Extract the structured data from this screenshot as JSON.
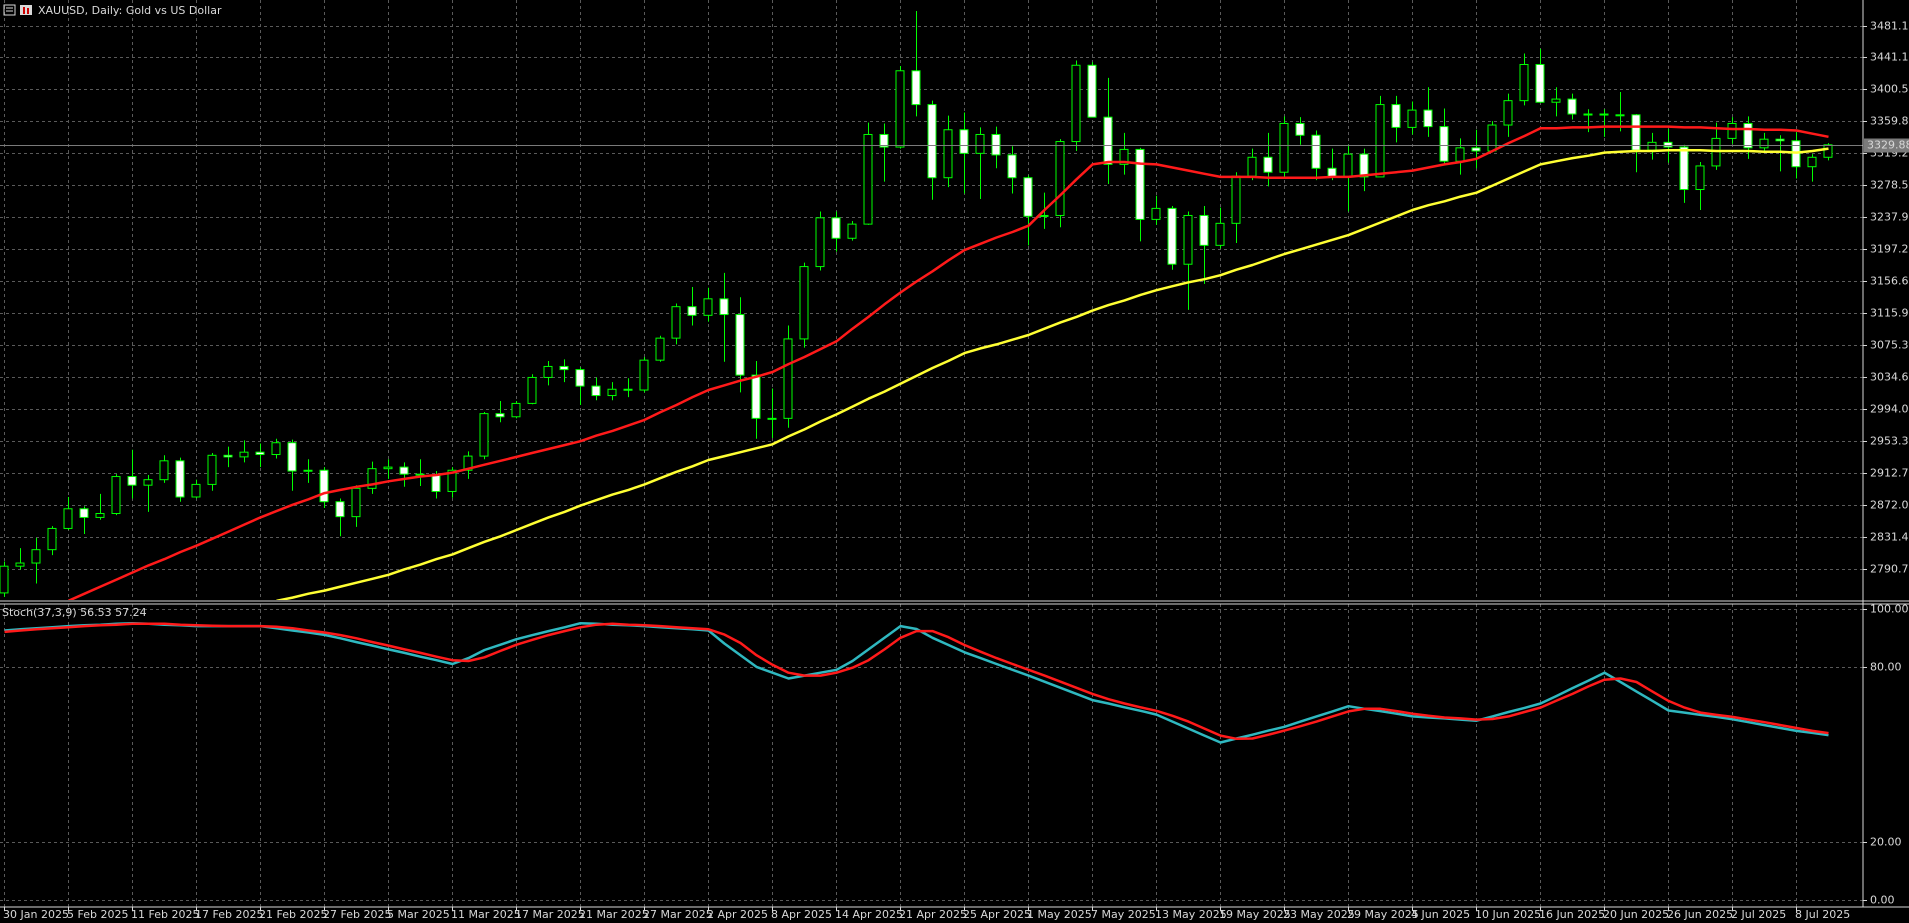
{
  "chart_data": [
    {
      "type": "candlestick",
      "title": "XAUUSD, Daily: Gold vs US Dollar",
      "categories": [
        "30 Jan 2025",
        null,
        null,
        null,
        "5 Feb 2025",
        null,
        null,
        null,
        "11 Feb 2025",
        null,
        null,
        null,
        "17 Feb 2025",
        null,
        null,
        null,
        "21 Feb 2025",
        null,
        null,
        null,
        "27 Feb 2025",
        null,
        null,
        null,
        "5 Mar 2025",
        null,
        null,
        null,
        "11 Mar 2025",
        null,
        null,
        null,
        "17 Mar 2025",
        null,
        null,
        null,
        "21 Mar 2025",
        null,
        null,
        null,
        "27 Mar 2025",
        null,
        null,
        null,
        "2 Apr 2025",
        null,
        null,
        null,
        "8 Apr 2025",
        null,
        null,
        null,
        "14 Apr 2025",
        null,
        null,
        null,
        "21 Apr 2025",
        null,
        null,
        null,
        "25 Apr 2025",
        null,
        null,
        null,
        "1 May 2025",
        null,
        null,
        null,
        "7 May 2025",
        null,
        null,
        null,
        "13 May 2025",
        null,
        null,
        null,
        "19 May 2025",
        null,
        null,
        null,
        "23 May 2025",
        null,
        null,
        null,
        "29 May 2025",
        null,
        null,
        null,
        "4 Jun 2025",
        null,
        null,
        null,
        "10 Jun 2025",
        null,
        null,
        null,
        "16 Jun 2025",
        null,
        null,
        null,
        "20 Jun 2025",
        null,
        null,
        null,
        "26 Jun 2025",
        null,
        null,
        null,
        "2 Jul 2025",
        null,
        null,
        null,
        "8 Jul 2025",
        null,
        null
      ],
      "open": [
        2760,
        2794,
        2798,
        2815,
        2842,
        2867,
        2856,
        2861,
        2908,
        2897,
        2904,
        2928,
        2882,
        2898,
        2935,
        2933,
        2939,
        2936,
        2951,
        2915,
        2916,
        2876,
        2857,
        2893,
        2918,
        2920,
        2911,
        2910,
        2889,
        2916,
        2934,
        2988,
        2984,
        3001,
        3034,
        3048,
        3044,
        3023,
        3011,
        3019,
        3018,
        3056,
        3084,
        3124,
        3113,
        3134,
        3114,
        3037,
        2982,
        2982,
        3083,
        3175,
        3237,
        3211,
        3229,
        3343,
        3327,
        3424,
        3381,
        3288,
        3349,
        3319,
        3343,
        3317,
        3288,
        3239,
        3240,
        3334,
        3431,
        3365,
        3305,
        3324,
        3235,
        3249,
        3178,
        3240,
        3202,
        3230,
        3290,
        3314,
        3295,
        3357,
        3342,
        3300,
        3289,
        3318,
        3289,
        3381,
        3352,
        3374,
        3353,
        3309,
        3326,
        3322,
        3355,
        3386,
        3432,
        3384,
        3388,
        3369,
        3369,
        3368,
        3368,
        3323,
        3333,
        3327,
        3273,
        3303,
        3338,
        3357,
        3326,
        3337,
        3335,
        3302,
        3314
      ],
      "high": [
        2800,
        2817,
        2830,
        2845,
        2882,
        2870,
        2886,
        2911,
        2942,
        2910,
        2935,
        2932,
        2904,
        2938,
        2946,
        2954,
        2950,
        2956,
        2955,
        2930,
        2920,
        2880,
        2897,
        2927,
        2930,
        2926,
        2930,
        2915,
        2920,
        2940,
        2990,
        3004,
        3004,
        3038,
        3055,
        3057,
        3047,
        3034,
        3028,
        3033,
        3060,
        3087,
        3128,
        3149,
        3148,
        3167,
        3136,
        3055,
        3020,
        3100,
        3180,
        3245,
        3245,
        3233,
        3358,
        3357,
        3430,
        3500,
        3386,
        3367,
        3371,
        3352,
        3353,
        3328,
        3291,
        3269,
        3337,
        3437,
        3435,
        3415,
        3345,
        3326,
        3265,
        3252,
        3245,
        3252,
        3250,
        3295,
        3325,
        3345,
        3366,
        3365,
        3348,
        3325,
        3330,
        3325,
        3392,
        3392,
        3385,
        3403,
        3376,
        3338,
        3349,
        3360,
        3395,
        3446,
        3452,
        3403,
        3395,
        3375,
        3375,
        3397,
        3369,
        3345,
        3350,
        3330,
        3308,
        3358,
        3365,
        3366,
        3345,
        3342,
        3346,
        3318,
        3332
      ],
      "low": [
        2755,
        2790,
        2772,
        2808,
        2840,
        2835,
        2853,
        2859,
        2880,
        2863,
        2900,
        2876,
        2880,
        2890,
        2920,
        2926,
        2920,
        2931,
        2890,
        2900,
        2868,
        2832,
        2844,
        2886,
        2905,
        2895,
        2896,
        2880,
        2881,
        2905,
        2930,
        2977,
        2982,
        3000,
        3024,
        3028,
        2999,
        3005,
        3005,
        3009,
        3015,
        3054,
        3076,
        3100,
        3105,
        3054,
        3015,
        2956,
        2957,
        2970,
        3072,
        3170,
        3194,
        3208,
        3228,
        3283,
        3325,
        3366,
        3260,
        3276,
        3268,
        3261,
        3300,
        3268,
        3202,
        3223,
        3225,
        3322,
        3365,
        3280,
        3292,
        3207,
        3228,
        3171,
        3120,
        3153,
        3198,
        3205,
        3285,
        3277,
        3287,
        3330,
        3285,
        3285,
        3245,
        3271,
        3289,
        3333,
        3343,
        3340,
        3305,
        3292,
        3300,
        3320,
        3340,
        3380,
        3383,
        3366,
        3362,
        3346,
        3340,
        3347,
        3295,
        3311,
        3307,
        3256,
        3247,
        3298,
        3331,
        3312,
        3322,
        3296,
        3287,
        3283,
        3310
      ],
      "close": [
        2794,
        2798,
        2815,
        2842,
        2867,
        2856,
        2861,
        2908,
        2897,
        2904,
        2928,
        2882,
        2898,
        2935,
        2933,
        2939,
        2936,
        2951,
        2915,
        2916,
        2876,
        2857,
        2893,
        2918,
        2920,
        2911,
        2910,
        2889,
        2916,
        2934,
        2988,
        2984,
        3001,
        3034,
        3048,
        3044,
        3023,
        3011,
        3019,
        3018,
        3056,
        3084,
        3124,
        3113,
        3134,
        3114,
        3037,
        2982,
        2982,
        3083,
        3175,
        3237,
        3211,
        3229,
        3343,
        3327,
        3424,
        3381,
        3288,
        3349,
        3319,
        3343,
        3317,
        3288,
        3239,
        3240,
        3334,
        3431,
        3365,
        3305,
        3324,
        3235,
        3249,
        3178,
        3240,
        3202,
        3230,
        3290,
        3314,
        3295,
        3357,
        3342,
        3300,
        3289,
        3318,
        3289,
        3381,
        3352,
        3374,
        3353,
        3309,
        3326,
        3322,
        3355,
        3386,
        3432,
        3384,
        3388,
        3369,
        3369,
        3368,
        3368,
        3323,
        3333,
        3327,
        3273,
        3303,
        3338,
        3357,
        3326,
        3337,
        3335,
        3302,
        3314,
        3329.88
      ],
      "bull_color": "#00ff00",
      "bear_color": "#ffffff",
      "series": [
        {
          "color": "#ff1a1a",
          "values": [
            null,
            null,
            null,
            null,
            2750,
            2759,
            2768,
            2777,
            2786,
            2795,
            2803,
            2812,
            2820,
            2829,
            2838,
            2847,
            2856,
            2864,
            2872,
            2879,
            2887,
            2891,
            2895,
            2898,
            2902,
            2905,
            2908,
            2910,
            2913,
            2918,
            2923,
            2928,
            2933,
            2938,
            2943,
            2948,
            2953,
            2960,
            2966,
            2973,
            2980,
            2990,
            2999,
            3009,
            3018,
            3024,
            3030,
            3035,
            3041,
            3051,
            3060,
            3070,
            3080,
            3096,
            3111,
            3127,
            3142,
            3156,
            3169,
            3183,
            3196,
            3204,
            3212,
            3219,
            3227,
            3247,
            3266,
            3286,
            3305,
            3308,
            3308,
            3306,
            3305,
            3301,
            3297,
            3293,
            3289,
            3289,
            3289,
            3288,
            3288,
            3288,
            3288,
            3289,
            3289,
            3291,
            3293,
            3295,
            3297,
            3301,
            3305,
            3308,
            3312,
            3322,
            3332,
            3341,
            3351,
            3351,
            3352,
            3352,
            3353,
            3353,
            3353,
            3353,
            3353,
            3352,
            3352,
            3351,
            3350,
            3350,
            3349,
            3349,
            3348,
            3344,
            3340
          ]
        },
        {
          "color": "#ffff33",
          "values": [
            null,
            null,
            null,
            null,
            null,
            null,
            null,
            null,
            null,
            null,
            null,
            null,
            null,
            null,
            null,
            null,
            null,
            2750,
            2754,
            2759,
            2763,
            2768,
            2773,
            2778,
            2783,
            2790,
            2796,
            2803,
            2809,
            2817,
            2825,
            2832,
            2840,
            2848,
            2856,
            2863,
            2871,
            2878,
            2885,
            2891,
            2898,
            2906,
            2914,
            2921,
            2929,
            2934,
            2939,
            2944,
            2949,
            2959,
            2968,
            2978,
            2987,
            2997,
            3007,
            3016,
            3026,
            3036,
            3046,
            3055,
            3065,
            3071,
            3076,
            3082,
            3088,
            3096,
            3104,
            3111,
            3119,
            3126,
            3132,
            3139,
            3145,
            3150,
            3155,
            3159,
            3164,
            3171,
            3177,
            3184,
            3191,
            3197,
            3203,
            3209,
            3215,
            3223,
            3231,
            3239,
            3247,
            3253,
            3258,
            3264,
            3269,
            3278,
            3287,
            3296,
            3305,
            3309,
            3313,
            3316,
            3320,
            3321,
            3322,
            3322,
            3323,
            3323,
            3323,
            3322,
            3322,
            3322,
            3321,
            3321,
            3320,
            3322,
            3325
          ]
        }
      ],
      "last_price": 3329.88,
      "last_price_color": "#7a7a7a",
      "ylim": [
        2751,
        3514
      ],
      "yticks": [
        3481.15,
        3441.15,
        {
          "value": 3400.5,
          "label": "3400.50"
        },
        3359.85,
        {
          "value": 3319.2,
          "label": "3319.20"
        },
        3278.55,
        {
          "value": 3237.9,
          "label": "3237.90"
        },
        3197.25,
        {
          "value": 3156.6,
          "label": "3156.60"
        },
        3115.95,
        {
          "value": 3075.3,
          "label": "3075.30"
        },
        3034.65,
        {
          "value": 2994,
          "label": "2994.00"
        },
        2953.35,
        {
          "value": 2912.7,
          "label": "2912.70"
        },
        2872.05,
        {
          "value": 2831.4,
          "label": "2831.40"
        },
        2790.75
      ],
      "grid": true
    },
    {
      "type": "line",
      "title": "Stoch(37,3,9) 56.53 57.24",
      "series": [
        {
          "color": "#2fb8c0",
          "values": [
            92.5,
            92.9,
            93.3,
            93.6,
            94,
            94.3,
            94.5,
            94.8,
            95,
            94.8,
            94.5,
            94.3,
            94,
            94,
            94,
            94,
            94,
            93.3,
            92.5,
            91.8,
            91,
            89.8,
            88.5,
            87.3,
            86,
            84.8,
            83.5,
            82.3,
            81,
            83,
            85.8,
            87.6,
            89.5,
            90.9,
            92.3,
            93.6,
            95,
            94.8,
            94.5,
            94.3,
            94,
            93.6,
            93.3,
            92.9,
            92.5,
            88,
            84,
            80,
            78,
            76,
            77,
            78,
            79,
            82,
            86,
            90,
            94,
            93,
            90,
            87.5,
            85,
            83,
            81,
            79,
            77,
            74.9,
            72.8,
            70.7,
            68.6,
            67.4,
            66.1,
            64.9,
            63.6,
            61.2,
            58.8,
            56.4,
            54,
            55.4,
            56.7,
            58.1,
            59.4,
            61.2,
            63,
            64.7,
            66.5,
            65.6,
            64.8,
            63.9,
            63,
            62.6,
            62.3,
            61.9,
            61.5,
            63,
            64.5,
            65.9,
            67.4,
            70,
            72.7,
            75.3,
            78,
            74.8,
            71.5,
            68.3,
            65,
            64.3,
            63.5,
            62.8,
            62,
            61,
            60,
            59,
            58,
            57.3,
            56.53
          ]
        },
        {
          "color": "#ff1a1a",
          "values": [
            92,
            92.5,
            92.9,
            93.3,
            93.6,
            94,
            94.3,
            94.5,
            94.8,
            94.8,
            94.8,
            94.5,
            94.3,
            94.1,
            94,
            94,
            94,
            93.8,
            93.3,
            92.5,
            91.8,
            90.9,
            89.8,
            88.5,
            87.3,
            86,
            84.8,
            83.5,
            82.3,
            82,
            83.3,
            85.5,
            87.6,
            89.3,
            90.9,
            92.3,
            93.6,
            94.5,
            94.8,
            94.5,
            94.3,
            94,
            93.6,
            93.3,
            92.9,
            91.1,
            88.2,
            84,
            80.7,
            78,
            77,
            77,
            78,
            79.7,
            82.3,
            86,
            90,
            92.3,
            92.3,
            90.2,
            87.5,
            85.2,
            83,
            81,
            79,
            77,
            74.9,
            72.8,
            70.7,
            68.9,
            67.4,
            66.1,
            64.9,
            63.2,
            61.2,
            58.8,
            56.4,
            55.3,
            55.4,
            56.7,
            58.1,
            59.6,
            61.2,
            63,
            64.7,
            65.6,
            65.6,
            64.8,
            63.9,
            63.2,
            62.6,
            62.3,
            61.9,
            62.1,
            63,
            64.5,
            66,
            68.4,
            70.7,
            73.3,
            75.6,
            76,
            74.8,
            71.5,
            68.3,
            66,
            64.3,
            63.5,
            62.8,
            61.9,
            61,
            60,
            59,
            58,
            57.24
          ]
        }
      ],
      "ylim": [
        -2.5,
        101.6
      ],
      "yticks": [
        {
          "value": 100,
          "label": "100.00"
        },
        {
          "value": 80,
          "label": "80.00"
        },
        {
          "value": 20,
          "label": "20.00"
        },
        {
          "value": 0,
          "label": "0.00"
        }
      ],
      "grid": true
    }
  ]
}
